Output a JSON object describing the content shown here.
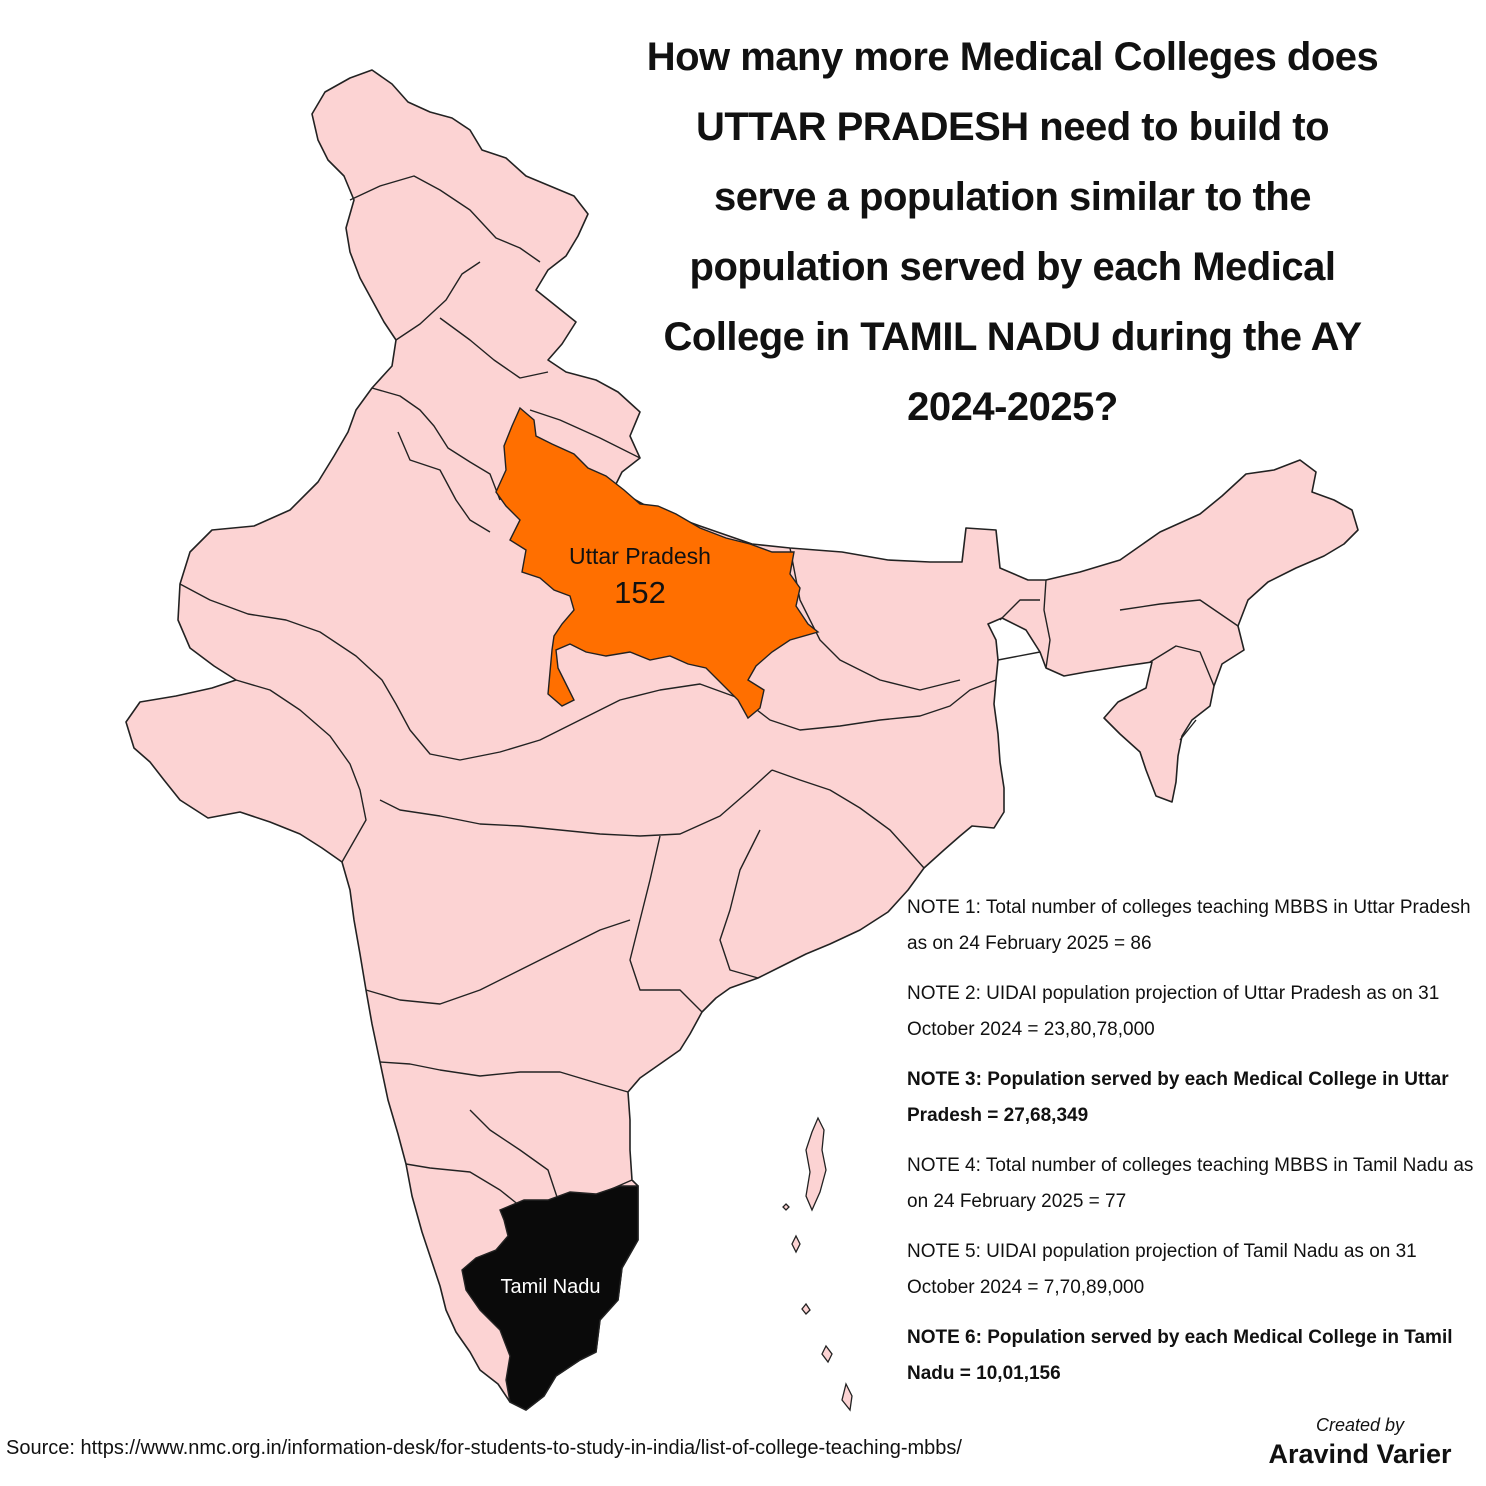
{
  "title": "How many more Medical Colleges does UTTAR PRADESH need to build to serve a population similar to the population served by each Medical College in TAMIL NADU during the AY 2024-2025?",
  "map": {
    "colors": {
      "default_state": "#fcd3d3",
      "uttar_pradesh": "#ff6f00",
      "tamil_nadu": "#0a0a0a",
      "border": "#222222"
    },
    "highlighted_states": [
      {
        "name": "Uttar Pradesh",
        "value": "152",
        "color": "#ff6f00"
      },
      {
        "name": "Tamil Nadu",
        "color": "#0a0a0a"
      }
    ]
  },
  "notes": [
    {
      "text": "NOTE 1: Total number of colleges teaching MBBS in Uttar Pradesh as on 24 February 2025 = 86",
      "bold": false
    },
    {
      "text": "NOTE 2: UIDAI population projection of Uttar Pradesh as on 31 October 2024 = 23,80,78,000",
      "bold": false
    },
    {
      "text": "NOTE 3: Population served by each Medical College in Uttar Pradesh = 27,68,349",
      "bold": true
    },
    {
      "text": "NOTE 4: Total number of colleges teaching MBBS in Tamil Nadu as on 24 February 2025 = 77",
      "bold": false
    },
    {
      "text": "NOTE 5: UIDAI population projection of Tamil Nadu as on 31 October 2024 = 7,70,89,000",
      "bold": false
    },
    {
      "text": "NOTE 6: Population served by each Medical College in Tamil Nadu = 10,01,156",
      "bold": true
    }
  ],
  "source": "Source: https://www.nmc.org.in/information-desk/for-students-to-study-in-india/list-of-college-teaching-mbbs/",
  "credit": {
    "line1": "Created by",
    "line2": "Aravind Varier"
  }
}
